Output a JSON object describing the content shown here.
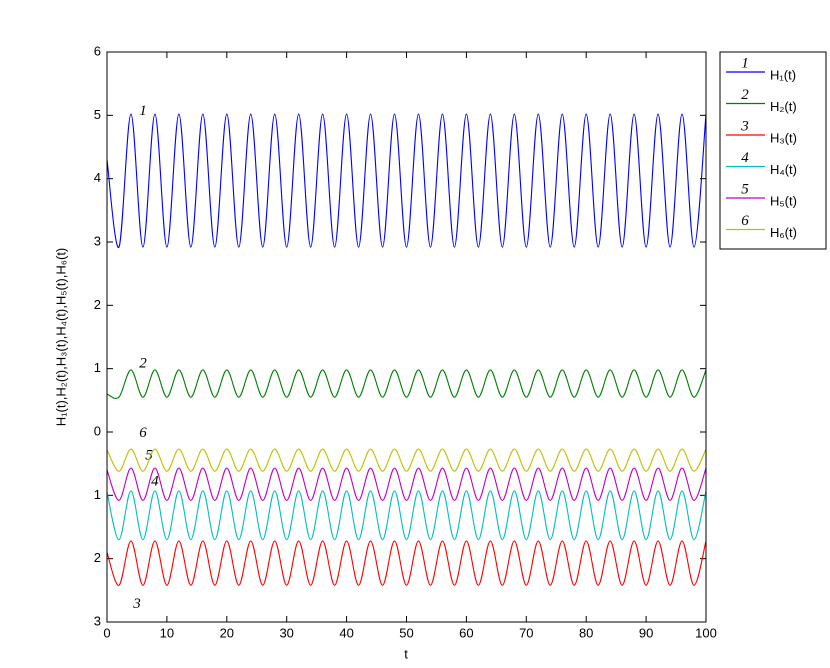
{
  "chart_data": {
    "type": "line",
    "x_label": "t",
    "y_label": "H₁(t),H₂(t),H₃(t),H₄(t),H₅(t),H₆(t)",
    "x": [
      0,
      2,
      4,
      6,
      8,
      10,
      12,
      14,
      16,
      18,
      20,
      22,
      24,
      26,
      28,
      30,
      32,
      34,
      36,
      38,
      40,
      42,
      44,
      46,
      48,
      50,
      52,
      54,
      56,
      58,
      60,
      62,
      64,
      66,
      68,
      70,
      72,
      74,
      76,
      78,
      80,
      82,
      84,
      86,
      88,
      90,
      92,
      94,
      96,
      98,
      100
    ],
    "xlim": [
      0,
      100
    ],
    "xticks": [
      0,
      10,
      20,
      30,
      40,
      50,
      60,
      70,
      80,
      90,
      100
    ],
    "ylim": [
      -3,
      6
    ],
    "yticks": [
      {
        "value": -3,
        "label": "3"
      },
      {
        "value": -2,
        "label": "2"
      },
      {
        "value": -1,
        "label": "1"
      },
      0,
      1,
      2,
      3,
      4,
      5,
      6
    ],
    "series": [
      {
        "name": "H₁(t)",
        "label": "1",
        "color": "#0000ff",
        "values": [
          4.3,
          2.92,
          5.02,
          2.92,
          5.02,
          2.92,
          5.02,
          2.92,
          5.02,
          2.92,
          5.02,
          2.92,
          5.02,
          2.92,
          5.02,
          2.92,
          5.02,
          2.92,
          5.02,
          2.92,
          5.02,
          2.92,
          5.02,
          2.92,
          5.02,
          2.92,
          5.02,
          2.92,
          5.02,
          2.92,
          5.02,
          2.92,
          5.02,
          2.92,
          5.02,
          2.92,
          5.02,
          2.92,
          5.02,
          2.92,
          5.02,
          2.92,
          5.02,
          2.92,
          5.02,
          2.92,
          5.02,
          2.92,
          5.02,
          2.92,
          5.02
        ]
      },
      {
        "name": "H₂(t)",
        "label": "2",
        "color": "#008000",
        "values": [
          0.6,
          0.55,
          0.98,
          0.55,
          0.98,
          0.55,
          0.98,
          0.55,
          0.98,
          0.55,
          0.98,
          0.55,
          0.98,
          0.55,
          0.98,
          0.55,
          0.98,
          0.55,
          0.98,
          0.55,
          0.98,
          0.55,
          0.98,
          0.55,
          0.98,
          0.55,
          0.98,
          0.55,
          0.98,
          0.55,
          0.98,
          0.55,
          0.98,
          0.55,
          0.98,
          0.55,
          0.98,
          0.55,
          0.98,
          0.55,
          0.98,
          0.55,
          0.98,
          0.55,
          0.98,
          0.55,
          0.98,
          0.55,
          0.98,
          0.55,
          0.98
        ]
      },
      {
        "name": "H₃(t)",
        "label": "3",
        "color": "#ff0000",
        "values": [
          -1.9,
          -2.42,
          -1.72,
          -2.42,
          -1.72,
          -2.42,
          -1.72,
          -2.42,
          -1.72,
          -2.42,
          -1.72,
          -2.42,
          -1.72,
          -2.42,
          -1.72,
          -2.42,
          -1.72,
          -2.42,
          -1.72,
          -2.42,
          -1.72,
          -2.42,
          -1.72,
          -2.42,
          -1.72,
          -2.42,
          -1.72,
          -2.42,
          -1.72,
          -2.42,
          -1.72,
          -2.42,
          -1.72,
          -2.42,
          -1.72,
          -2.42,
          -1.72,
          -2.42,
          -1.72,
          -2.42,
          -1.72,
          -2.42,
          -1.72,
          -2.42,
          -1.72,
          -2.42,
          -1.72,
          -2.42,
          -1.72,
          -2.42,
          -1.72
        ]
      },
      {
        "name": "H₄(t)",
        "label": "4",
        "color": "#00bfbf",
        "values": [
          -0.95,
          -1.7,
          -0.93,
          -1.7,
          -0.93,
          -1.7,
          -0.93,
          -1.7,
          -0.93,
          -1.7,
          -0.93,
          -1.7,
          -0.93,
          -1.7,
          -0.93,
          -1.7,
          -0.93,
          -1.7,
          -0.93,
          -1.7,
          -0.93,
          -1.7,
          -0.93,
          -1.7,
          -0.93,
          -1.7,
          -0.93,
          -1.7,
          -0.93,
          -1.7,
          -0.93,
          -1.7,
          -0.93,
          -1.7,
          -0.93,
          -1.7,
          -0.93,
          -1.7,
          -0.93,
          -1.7,
          -0.93,
          -1.7,
          -0.93,
          -1.7,
          -0.93,
          -1.7,
          -0.93,
          -1.7,
          -0.93,
          -1.7,
          -0.93
        ]
      },
      {
        "name": "H₅(t)",
        "label": "5",
        "color": "#bf00bf",
        "values": [
          -0.6,
          -1.08,
          -0.57,
          -1.08,
          -0.57,
          -1.08,
          -0.57,
          -1.08,
          -0.57,
          -1.08,
          -0.57,
          -1.08,
          -0.57,
          -1.08,
          -0.57,
          -1.08,
          -0.57,
          -1.08,
          -0.57,
          -1.08,
          -0.57,
          -1.08,
          -0.57,
          -1.08,
          -0.57,
          -1.08,
          -0.57,
          -1.08,
          -0.57,
          -1.08,
          -0.57,
          -1.08,
          -0.57,
          -1.08,
          -0.57,
          -1.08,
          -0.57,
          -1.08,
          -0.57,
          -1.08,
          -0.57,
          -1.08,
          -0.57,
          -1.08,
          -0.57,
          -1.08,
          -0.57,
          -1.08,
          -0.57,
          -1.08,
          -0.57
        ]
      },
      {
        "name": "H₆(t)",
        "label": "6",
        "color": "#bfbf00",
        "values": [
          -0.28,
          -0.62,
          -0.27,
          -0.62,
          -0.27,
          -0.62,
          -0.27,
          -0.62,
          -0.27,
          -0.62,
          -0.27,
          -0.62,
          -0.27,
          -0.62,
          -0.27,
          -0.62,
          -0.27,
          -0.62,
          -0.27,
          -0.62,
          -0.27,
          -0.62,
          -0.27,
          -0.62,
          -0.27,
          -0.62,
          -0.27,
          -0.62,
          -0.27,
          -0.62,
          -0.27,
          -0.62,
          -0.27,
          -0.62,
          -0.27,
          -0.62,
          -0.27,
          -0.62,
          -0.27,
          -0.62,
          -0.27,
          -0.62,
          -0.27,
          -0.62,
          -0.27,
          -0.62,
          -0.27,
          -0.62,
          -0.27,
          -0.62,
          -0.27
        ]
      }
    ]
  }
}
